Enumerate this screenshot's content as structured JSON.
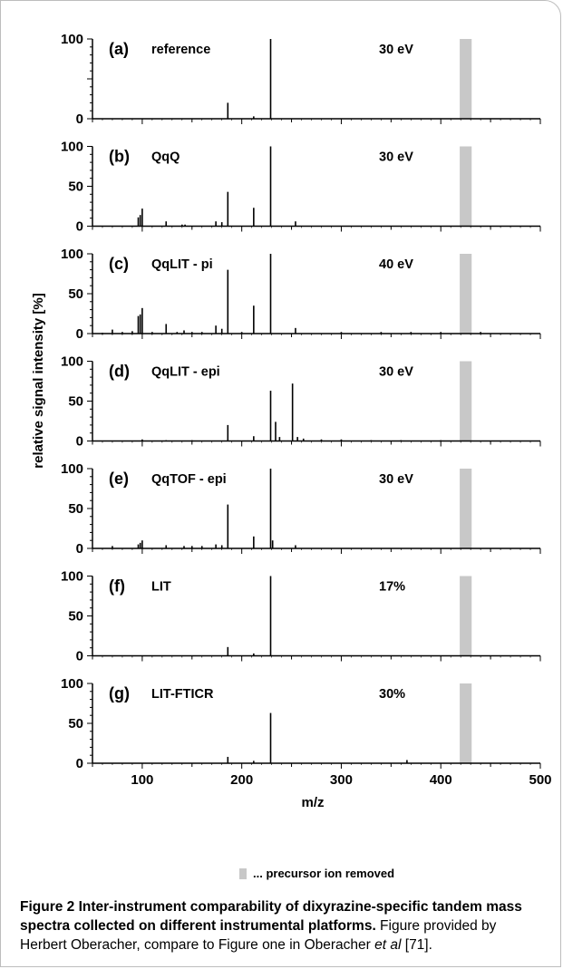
{
  "chart_data": {
    "type": "bar",
    "xlabel": "m/z",
    "ylabel": "relative signal intensity [%]",
    "xlim": [
      50,
      500
    ],
    "x_ticks": [
      "100",
      "200",
      "300",
      "400",
      "500"
    ],
    "precursor_band": [
      419,
      431
    ],
    "precursor_color": "#c8c8c8",
    "panels": [
      {
        "id": "(a)",
        "label": "reference",
        "energy": "30 eV",
        "yticks": [
          "0",
          "100"
        ],
        "peaks": [
          [
            186,
            20
          ],
          [
            212,
            3
          ],
          [
            229,
            100
          ]
        ]
      },
      {
        "id": "(b)",
        "label": "QqQ",
        "energy": "30 eV",
        "yticks": [
          "0",
          "50",
          "100"
        ],
        "peaks": [
          [
            96,
            11
          ],
          [
            98,
            14
          ],
          [
            100,
            22
          ],
          [
            124,
            6
          ],
          [
            140,
            2
          ],
          [
            143,
            2
          ],
          [
            174,
            6
          ],
          [
            180,
            5
          ],
          [
            186,
            43
          ],
          [
            212,
            23
          ],
          [
            229,
            100
          ],
          [
            254,
            6
          ]
        ]
      },
      {
        "id": "(c)",
        "label": "QqLIT - pi",
        "energy": "40 eV",
        "yticks": [
          "0",
          "50",
          "100"
        ],
        "peaks": [
          [
            60,
            1
          ],
          [
            70,
            5
          ],
          [
            80,
            2
          ],
          [
            90,
            3
          ],
          [
            96,
            22
          ],
          [
            98,
            24
          ],
          [
            100,
            32
          ],
          [
            110,
            2
          ],
          [
            124,
            12
          ],
          [
            135,
            2
          ],
          [
            142,
            4
          ],
          [
            150,
            2
          ],
          [
            160,
            2
          ],
          [
            174,
            10
          ],
          [
            180,
            6
          ],
          [
            186,
            80
          ],
          [
            200,
            2
          ],
          [
            212,
            35
          ],
          [
            229,
            100
          ],
          [
            254,
            7
          ],
          [
            300,
            2
          ],
          [
            340,
            2
          ],
          [
            370,
            2
          ],
          [
            400,
            2
          ],
          [
            440,
            2
          ]
        ]
      },
      {
        "id": "(d)",
        "label": "QqLIT - epi",
        "energy": "30 eV",
        "yticks": [
          "0",
          "50",
          "100"
        ],
        "peaks": [
          [
            100,
            2
          ],
          [
            124,
            1
          ],
          [
            150,
            1
          ],
          [
            186,
            20
          ],
          [
            212,
            6
          ],
          [
            229,
            63
          ],
          [
            234,
            24
          ],
          [
            238,
            5
          ],
          [
            251,
            72
          ],
          [
            256,
            5
          ],
          [
            262,
            3
          ],
          [
            280,
            2
          ],
          [
            300,
            2
          ],
          [
            330,
            1
          ],
          [
            360,
            1
          ],
          [
            400,
            1
          ]
        ]
      },
      {
        "id": "(e)",
        "label": "QqTOF - epi",
        "energy": "30 eV",
        "yticks": [
          "0",
          "50",
          "100"
        ],
        "peaks": [
          [
            70,
            3
          ],
          [
            96,
            5
          ],
          [
            98,
            7
          ],
          [
            100,
            10
          ],
          [
            124,
            4
          ],
          [
            142,
            3
          ],
          [
            150,
            3
          ],
          [
            160,
            3
          ],
          [
            174,
            5
          ],
          [
            180,
            4
          ],
          [
            186,
            55
          ],
          [
            212,
            15
          ],
          [
            229,
            100
          ],
          [
            231,
            10
          ],
          [
            254,
            4
          ]
        ]
      },
      {
        "id": "(f)",
        "label": "LIT",
        "energy": "17%",
        "yticks": [
          "0",
          "50",
          "100"
        ],
        "peaks": [
          [
            186,
            11
          ],
          [
            212,
            3
          ],
          [
            229,
            100
          ]
        ]
      },
      {
        "id": "(g)",
        "label": "LIT-FTICR",
        "energy": "30%",
        "yticks": [
          "0",
          "50",
          "100"
        ],
        "peaks": [
          [
            186,
            8
          ],
          [
            212,
            3
          ],
          [
            229,
            63
          ],
          [
            366,
            4
          ]
        ]
      }
    ]
  },
  "legend_text": "... precursor ion removed",
  "caption": {
    "bold": "Figure 2 Inter-instrument comparability of dixyrazine-specific tandem mass spectra collected on different instrumental platforms.",
    "pre": " Figure provided by Herbert Oberacher, compare to Figure one in Oberacher ",
    "italic": "et al",
    "post": " [71]."
  }
}
